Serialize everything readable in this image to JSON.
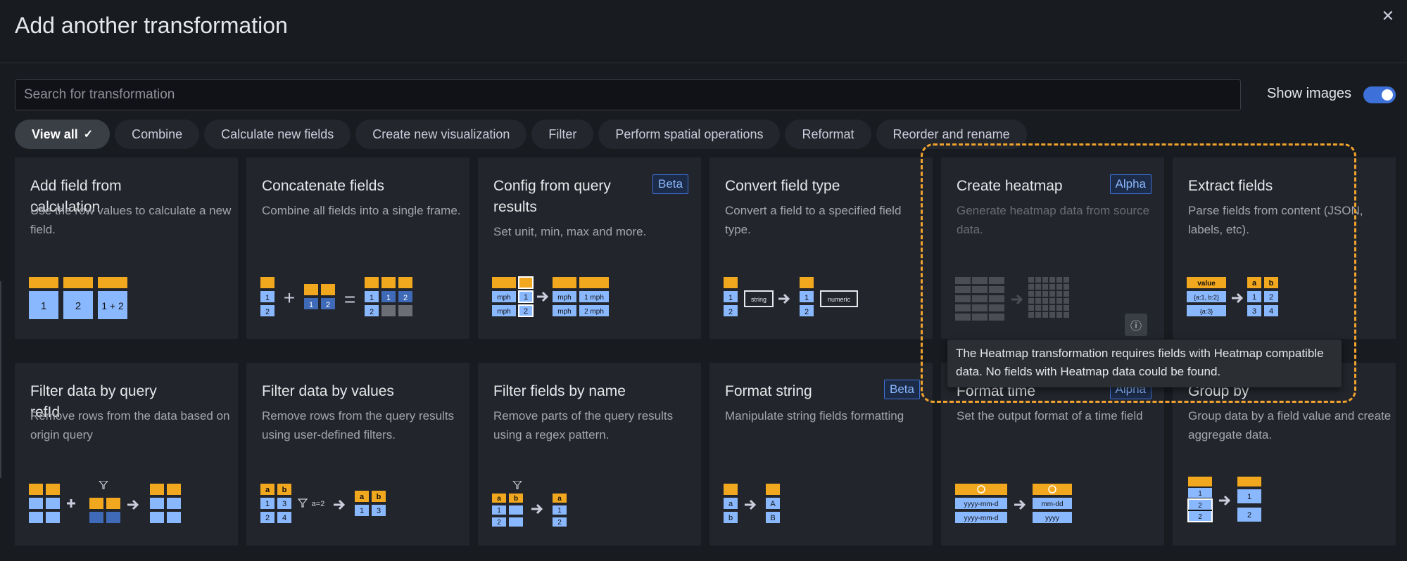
{
  "modal": {
    "title": "Add another transformation",
    "close_icon": "close-icon"
  },
  "search": {
    "placeholder": "Search for transformation",
    "value": ""
  },
  "show_images": {
    "label": "Show images",
    "enabled": true
  },
  "filters": [
    {
      "label": "View all",
      "active": true
    },
    {
      "label": "Combine"
    },
    {
      "label": "Calculate new fields"
    },
    {
      "label": "Create new visualization"
    },
    {
      "label": "Filter"
    },
    {
      "label": "Perform spatial operations"
    },
    {
      "label": "Reformat"
    },
    {
      "label": "Reorder and rename"
    }
  ],
  "cards": [
    {
      "name": "Add field from calculation",
      "desc": "Use the row values to calculate a new field."
    },
    {
      "name": "Concatenate fields",
      "desc": "Combine all fields into a single frame."
    },
    {
      "name": "Config from query results",
      "desc": "Set unit, min, max and more.",
      "badge": "Beta"
    },
    {
      "name": "Convert field type",
      "desc": "Convert a field to a specified field type."
    },
    {
      "name": "Create heatmap",
      "desc": "Generate heatmap data from source data.",
      "badge": "Alpha",
      "disabled": true
    },
    {
      "name": "Extract fields",
      "desc": "Parse fields from content (JSON, labels, etc)."
    },
    {
      "name": "Filter data by query refId",
      "desc": "Remove rows from the data based on origin query"
    },
    {
      "name": "Filter data by values",
      "desc": "Remove rows from the query results using user-defined filters."
    },
    {
      "name": "Filter fields by name",
      "desc": "Remove parts of the query results using a regex pattern."
    },
    {
      "name": "Format string",
      "desc": "Manipulate string fields formatting",
      "badge": "Beta"
    },
    {
      "name": "Format time",
      "desc": "Set the output format of a time field",
      "badge": "Alpha"
    },
    {
      "name": "Group by",
      "desc": "Group data by a field value and create aggregate data."
    }
  ],
  "illus": {
    "calc": [
      "1",
      "2",
      "1 + 2"
    ],
    "concat_ops": [
      "+",
      "="
    ],
    "mph": "mph",
    "one_mph": "1 mph",
    "two_mph": "2 mph",
    "string": "string",
    "numeric": "numeric",
    "value": "value",
    "ab": "{a:1, b:2}",
    "a3": "{a:3}",
    "a_eq_2": "a=2",
    "yyyy": "yyyy-mm-d",
    "mmdd": "mm-dd",
    "yyyy_short": "yyyy",
    "letters": [
      "a",
      "b",
      "A",
      "B"
    ],
    "nums": [
      "1",
      "2",
      "3",
      "4"
    ]
  },
  "tooltip": {
    "text": "The Heatmap transformation requires fields with Heatmap compatible data. No fields with Heatmap data could be found."
  },
  "colors": {
    "accent_blue": "#3d71d9",
    "orange": "#f0a22e",
    "tile_blue": "#8ab8ff",
    "tile_orange": "#f2a81e"
  }
}
